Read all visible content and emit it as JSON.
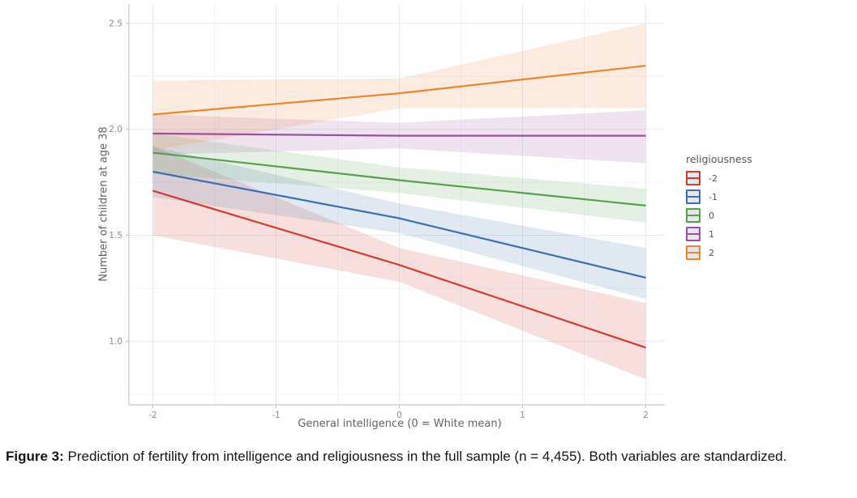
{
  "figure": {
    "caption_label": "Figure 3:",
    "caption_text": "Prediction of fertility from intelligence and religiousness in the full sample (n = 4,455). Both variables are standardized."
  },
  "chart_data": {
    "type": "line",
    "title": "",
    "xlabel": "General intelligence (0 = White mean)",
    "ylabel": "Number of children at age 38",
    "legend_title": "religiousness",
    "legend_position": "right",
    "grid": "major+minor",
    "background": "#ffffff",
    "major_grid_color": "#eaeaf1",
    "minor_grid_color": "#f4f4f8",
    "axis_line_color": "#bcbcc6",
    "tick_label_color": "#8d8d95",
    "xlim": [
      -2.19,
      2.15
    ],
    "ylim": [
      0.7,
      2.59
    ],
    "x_ticks": [
      -2,
      -1,
      0,
      1,
      2
    ],
    "x_tick_labels": [
      "-2",
      "-1",
      "0",
      "1",
      "2"
    ],
    "y_ticks": [
      1.0,
      1.5,
      2.0,
      2.5
    ],
    "y_tick_labels": [
      "1.0",
      "1.5",
      "2.0",
      "2.5"
    ],
    "x_minor_ticks": [
      -1.5,
      -0.5,
      0.5,
      1.5
    ],
    "y_minor_ticks": [
      0.75,
      1.25,
      1.75,
      2.25
    ],
    "x": [
      -2,
      0,
      2
    ],
    "ribbon_opacity": 0.16,
    "series": [
      {
        "name": "-2",
        "color": "#d43a30",
        "y": [
          1.71,
          1.36,
          0.97
        ],
        "ci_lower": [
          1.5,
          1.28,
          0.82
        ],
        "ci_upper": [
          1.92,
          1.44,
          1.18
        ]
      },
      {
        "name": "-1",
        "color": "#3d6fb0",
        "y": [
          1.8,
          1.58,
          1.3
        ],
        "ci_lower": [
          1.68,
          1.51,
          1.2
        ],
        "ci_upper": [
          1.92,
          1.65,
          1.44
        ]
      },
      {
        "name": "0",
        "color": "#56a14e",
        "y": [
          1.89,
          1.76,
          1.64
        ],
        "ci_lower": [
          1.79,
          1.7,
          1.56
        ],
        "ci_upper": [
          1.98,
          1.82,
          1.72
        ]
      },
      {
        "name": "1",
        "color": "#9b51a0",
        "y": [
          1.98,
          1.97,
          1.97
        ],
        "ci_lower": [
          1.88,
          1.91,
          1.84
        ],
        "ci_upper": [
          2.07,
          2.03,
          2.09
        ]
      },
      {
        "name": "2",
        "color": "#ea8531",
        "y": [
          2.07,
          2.17,
          2.3
        ],
        "ci_lower": [
          1.9,
          2.1,
          2.1
        ],
        "ci_upper": [
          2.23,
          2.24,
          2.5
        ]
      }
    ]
  }
}
